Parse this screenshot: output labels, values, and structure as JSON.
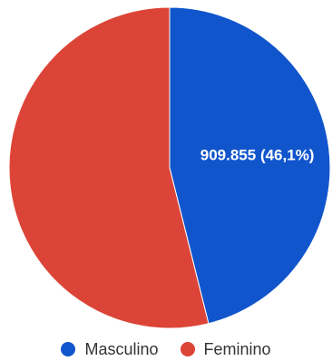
{
  "chart_data": {
    "type": "pie",
    "title": "",
    "slices": [
      {
        "name": "Masculino",
        "value": 909855,
        "percent": 46.1,
        "color": "#1155cc",
        "label": "909.855 (46,1%)"
      },
      {
        "name": "Feminino",
        "percent": 53.9,
        "color": "#dc4437",
        "label": ""
      }
    ],
    "legend_position": "bottom"
  }
}
